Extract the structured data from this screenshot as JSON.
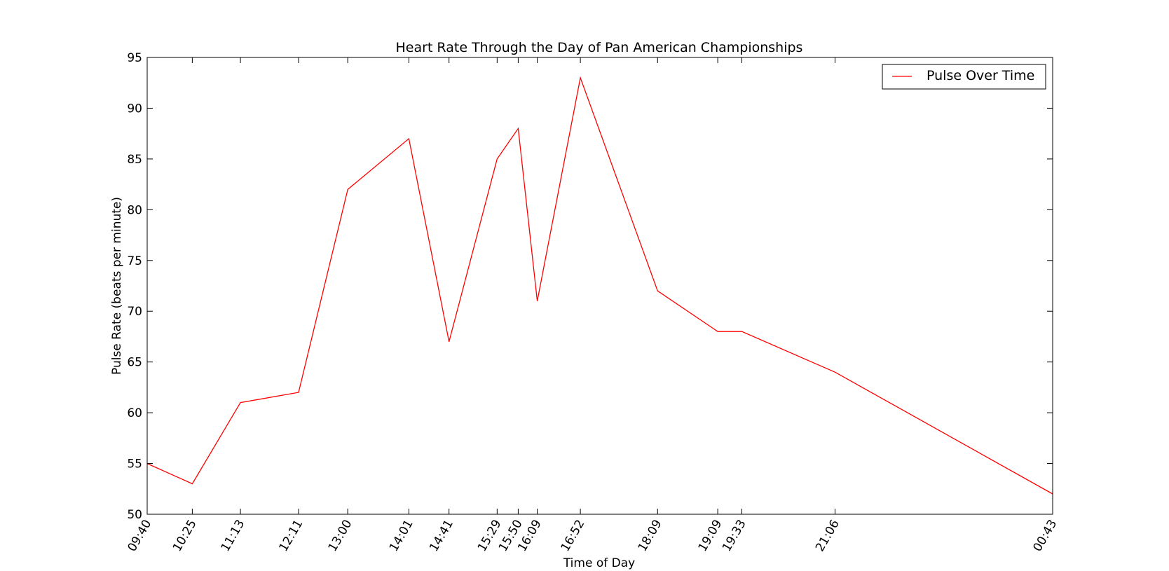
{
  "chart_data": {
    "type": "line",
    "title": "Heart Rate Through the Day of Pan American Championships",
    "xlabel": "Time of Day",
    "ylabel": "Pulse Rate (beats per minute)",
    "ylim": [
      50,
      95
    ],
    "yticks": [
      50,
      55,
      60,
      65,
      70,
      75,
      80,
      85,
      90,
      95
    ],
    "grid": false,
    "legend_position": "top-right",
    "x": [
      "09:40",
      "10:25",
      "11:13",
      "12:11",
      "13:00",
      "14:01",
      "14:41",
      "15:29",
      "15:50",
      "16:09",
      "16:52",
      "18:09",
      "19:09",
      "19:33",
      "21:06",
      "00:43"
    ],
    "series": [
      {
        "name": "Pulse Over Time",
        "color": "#ff0000",
        "values": [
          55,
          53,
          61,
          62,
          82,
          87,
          67,
          85,
          88,
          71,
          93,
          72,
          68,
          68,
          64,
          52
        ]
      }
    ]
  }
}
